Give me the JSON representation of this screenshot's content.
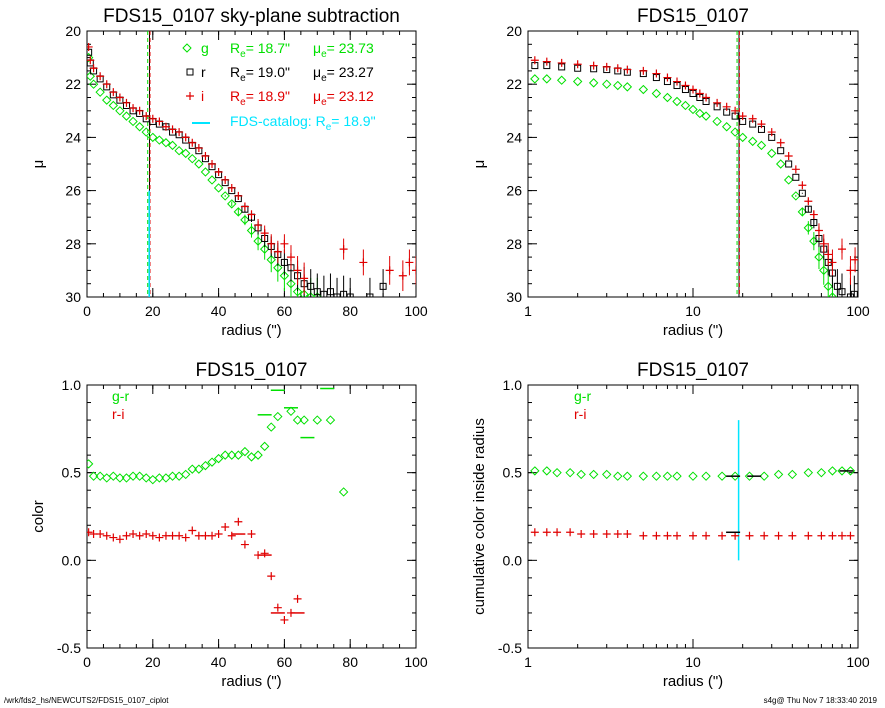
{
  "footer": {
    "path": "/wrk/fds2_hs/NEWCUTS2/FDS15_0107_ciplot",
    "stamp": "s4g@  Thu Nov  7 18:33:40 2019"
  },
  "colors": {
    "g": "#00e000",
    "r": "#000000",
    "i": "#e00000",
    "catalog": "#00e5ff"
  },
  "chart_data": [
    {
      "type": "scatter",
      "title": "FDS15_0107 sky-plane subtraction",
      "xlabel": "radius (\")",
      "ylabel": "μ",
      "xscale": "linear",
      "xlim": [
        0,
        100
      ],
      "ylim": [
        30,
        20
      ],
      "x_ticks": [
        "0",
        "20",
        "40",
        "60",
        "80",
        "100"
      ],
      "y_ticks": [
        "20",
        "22",
        "24",
        "26",
        "28",
        "30"
      ],
      "legend": [
        {
          "marker": "◇",
          "band": "g",
          "re_label": "R",
          "re_sub": "e",
          "re_value": "= 18.7\"",
          "mu_label": "μ",
          "mu_sub": "e",
          "mu_value": "= 23.73",
          "color": "#00e000"
        },
        {
          "marker": "□",
          "band": "r",
          "re_label": "R",
          "re_sub": "e",
          "re_value": "= 19.0\"",
          "mu_label": "μ",
          "mu_sub": "e",
          "mu_value": "= 23.27",
          "color": "#000000"
        },
        {
          "marker": "+",
          "band": "i",
          "re_label": "R",
          "re_sub": "e",
          "re_value": "= 18.9\"",
          "mu_label": "μ",
          "mu_sub": "e",
          "mu_value": "= 23.12",
          "color": "#e00000"
        }
      ],
      "catalog_label": "FDS-catalog: R",
      "catalog_sub": "e",
      "catalog_value": "=  18.9\"",
      "vlines": [
        18.7,
        19.0,
        18.9
      ],
      "catalog_line": {
        "x": 18.9,
        "y_from": 26,
        "y_to": 30
      },
      "series": [
        {
          "name": "g",
          "marker": "diamond",
          "x": [
            0.5,
            1,
            2,
            4,
            6,
            8,
            10,
            12,
            14,
            16,
            18,
            20,
            22,
            24,
            26,
            28,
            30,
            32,
            34,
            36,
            38,
            40,
            42,
            44,
            46,
            48,
            50,
            52,
            54,
            56,
            58,
            60,
            62,
            64,
            66,
            68,
            70
          ],
          "y": [
            21.0,
            21.7,
            22.0,
            22.3,
            22.6,
            22.8,
            23.0,
            23.2,
            23.4,
            23.6,
            23.8,
            24.0,
            24.1,
            24.2,
            24.3,
            24.5,
            24.6,
            24.8,
            25.0,
            25.3,
            25.6,
            25.9,
            26.2,
            26.5,
            26.8,
            27.1,
            27.5,
            27.9,
            28.2,
            28.6,
            28.9,
            29.2,
            29.5,
            29.8,
            29.9,
            30.0,
            30.0
          ]
        },
        {
          "name": "r",
          "marker": "square",
          "x": [
            0.5,
            1,
            2,
            4,
            6,
            8,
            10,
            12,
            14,
            16,
            18,
            20,
            22,
            24,
            26,
            28,
            30,
            32,
            34,
            36,
            38,
            40,
            42,
            44,
            46,
            48,
            50,
            52,
            54,
            56,
            58,
            60,
            62,
            64,
            66,
            68,
            70,
            72,
            74,
            76,
            78,
            80,
            86,
            90
          ],
          "y": [
            20.8,
            21.2,
            21.5,
            21.8,
            22.1,
            22.4,
            22.6,
            22.8,
            23.0,
            23.1,
            23.3,
            23.4,
            23.5,
            23.6,
            23.8,
            23.9,
            24.1,
            24.3,
            24.5,
            24.8,
            25.1,
            25.4,
            25.7,
            26.0,
            26.3,
            26.7,
            27.0,
            27.4,
            27.8,
            28.1,
            28.4,
            28.7,
            28.9,
            29.2,
            29.5,
            29.6,
            29.8,
            29.9,
            29.8,
            30.0,
            29.9,
            30.0,
            30.0,
            29.6
          ]
        },
        {
          "name": "i",
          "marker": "plus",
          "x": [
            0.5,
            1,
            2,
            4,
            6,
            8,
            10,
            12,
            14,
            16,
            18,
            20,
            22,
            24,
            26,
            28,
            30,
            32,
            34,
            36,
            38,
            40,
            42,
            44,
            46,
            48,
            50,
            52,
            54,
            56,
            58,
            60,
            62,
            64,
            66,
            78,
            84,
            92,
            96,
            98,
            100
          ],
          "y": [
            20.6,
            21.1,
            21.4,
            21.7,
            22.0,
            22.3,
            22.5,
            22.7,
            22.9,
            23.0,
            23.2,
            23.3,
            23.4,
            23.6,
            23.7,
            23.8,
            24.0,
            24.2,
            24.4,
            24.7,
            25.0,
            25.3,
            25.6,
            25.9,
            26.2,
            26.6,
            26.9,
            27.3,
            27.6,
            28.0,
            28.3,
            28.0,
            28.5,
            29.0,
            29.3,
            28.2,
            28.7,
            29.0,
            29.2,
            28.7,
            29.0
          ]
        }
      ]
    },
    {
      "type": "scatter",
      "title": "FDS15_0107",
      "xlabel": "radius (\")",
      "ylabel": "μ",
      "xscale": "log",
      "xlim": [
        1,
        100
      ],
      "ylim": [
        30,
        20
      ],
      "x_ticks": [
        "1",
        "10",
        "100"
      ],
      "y_ticks": [
        "20",
        "22",
        "24",
        "26",
        "28",
        "30"
      ],
      "vlines": [
        18.7,
        19.0,
        18.9
      ],
      "series": [
        {
          "name": "g",
          "marker": "diamond",
          "x": [
            1.1,
            1.3,
            1.6,
            2.0,
            2.5,
            3.0,
            3.5,
            4,
            5,
            6,
            7,
            8,
            9,
            10,
            11,
            12,
            14,
            16,
            18,
            20,
            23,
            26,
            30,
            34,
            38,
            42,
            46,
            50,
            54,
            58,
            62,
            66,
            70
          ],
          "y": [
            21.8,
            21.8,
            21.85,
            21.9,
            21.95,
            22.0,
            22.05,
            22.1,
            22.2,
            22.35,
            22.5,
            22.65,
            22.8,
            22.95,
            23.1,
            23.2,
            23.4,
            23.6,
            23.8,
            24.0,
            24.15,
            24.3,
            24.6,
            25.0,
            25.6,
            26.2,
            26.8,
            27.4,
            27.9,
            28.5,
            29.0,
            29.6,
            30.0
          ]
        },
        {
          "name": "r",
          "marker": "square",
          "x": [
            1.1,
            1.3,
            1.6,
            2.0,
            2.5,
            3.0,
            3.5,
            4,
            5,
            6,
            7,
            8,
            9,
            10,
            11,
            12,
            14,
            16,
            18,
            20,
            23,
            26,
            30,
            34,
            38,
            42,
            46,
            50,
            54,
            58,
            62,
            66,
            70,
            75,
            80,
            90,
            95
          ],
          "y": [
            21.3,
            21.3,
            21.35,
            21.4,
            21.42,
            21.45,
            21.5,
            21.55,
            21.6,
            21.75,
            21.9,
            22.05,
            22.2,
            22.35,
            22.5,
            22.65,
            22.85,
            23.05,
            23.2,
            23.4,
            23.5,
            23.7,
            24.0,
            24.5,
            25.0,
            25.5,
            26.1,
            26.7,
            27.2,
            27.8,
            28.2,
            28.7,
            29.1,
            29.6,
            29.8,
            30.0,
            29.9
          ]
        },
        {
          "name": "i",
          "marker": "plus",
          "x": [
            1.1,
            1.3,
            1.6,
            2.0,
            2.5,
            3.0,
            3.5,
            4,
            5,
            6,
            7,
            8,
            9,
            10,
            11,
            12,
            14,
            16,
            18,
            20,
            23,
            26,
            30,
            34,
            38,
            42,
            46,
            50,
            54,
            58,
            62,
            66,
            70,
            80,
            90,
            96
          ],
          "y": [
            21.1,
            21.15,
            21.2,
            21.25,
            21.3,
            21.35,
            21.4,
            21.45,
            21.5,
            21.6,
            21.75,
            21.9,
            22.05,
            22.2,
            22.35,
            22.5,
            22.7,
            22.85,
            23.0,
            23.2,
            23.3,
            23.5,
            23.8,
            24.2,
            24.7,
            25.2,
            25.8,
            26.4,
            26.9,
            27.5,
            28.0,
            28.4,
            28.7,
            28.2,
            29.0,
            28.6
          ]
        }
      ]
    },
    {
      "type": "scatter",
      "title": "FDS15_0107",
      "xlabel": "radius (\")",
      "ylabel": "color",
      "xscale": "linear",
      "xlim": [
        0,
        100
      ],
      "ylim": [
        -0.5,
        1.0
      ],
      "x_ticks": [
        "0",
        "20",
        "40",
        "60",
        "80",
        "100"
      ],
      "y_ticks": [
        "-0.5",
        "0.0",
        "0.5",
        "1.0"
      ],
      "legend": [
        {
          "label": "g-r",
          "color": "#00e000"
        },
        {
          "label": "r-i",
          "color": "#e00000"
        }
      ],
      "series": [
        {
          "name": "g-r",
          "marker": "diamond",
          "x": [
            0.5,
            2,
            4,
            6,
            8,
            10,
            12,
            14,
            16,
            18,
            20,
            22,
            24,
            26,
            28,
            30,
            32,
            34,
            36,
            38,
            40,
            42,
            44,
            46,
            48,
            50,
            52,
            54,
            56,
            58,
            62,
            64,
            66,
            70,
            74,
            78
          ],
          "y": [
            0.55,
            0.48,
            0.48,
            0.47,
            0.48,
            0.47,
            0.47,
            0.48,
            0.48,
            0.47,
            0.46,
            0.47,
            0.47,
            0.48,
            0.48,
            0.49,
            0.52,
            0.52,
            0.54,
            0.56,
            0.58,
            0.6,
            0.6,
            0.6,
            0.62,
            0.59,
            0.6,
            0.65,
            0.76,
            0.82,
            0.85,
            0.8,
            0.8,
            0.8,
            0.8,
            0.39
          ]
        },
        {
          "name": "g-r bins",
          "marker": "dash",
          "x": [
            54,
            58,
            62,
            67,
            73
          ],
          "y": [
            0.83,
            0.97,
            0.87,
            0.7,
            0.98
          ]
        },
        {
          "name": "r-i",
          "marker": "plus",
          "x": [
            0.5,
            2,
            4,
            6,
            8,
            10,
            12,
            14,
            16,
            18,
            20,
            22,
            24,
            26,
            28,
            30,
            32,
            34,
            36,
            38,
            40,
            42,
            44,
            46,
            48,
            50,
            52,
            54,
            56,
            58,
            60,
            62,
            64
          ],
          "y": [
            0.16,
            0.15,
            0.15,
            0.14,
            0.13,
            0.12,
            0.14,
            0.15,
            0.14,
            0.15,
            0.14,
            0.13,
            0.14,
            0.14,
            0.14,
            0.13,
            0.17,
            0.14,
            0.14,
            0.14,
            0.15,
            0.19,
            0.14,
            0.22,
            0.09,
            0.15,
            0.03,
            0.04,
            -0.09,
            -0.27,
            -0.34,
            -0.3,
            -0.22
          ]
        },
        {
          "name": "r-i bins",
          "marker": "dash",
          "x": [
            46,
            54,
            58,
            64
          ],
          "y": [
            0.15,
            0.03,
            -0.3,
            -0.3
          ]
        }
      ]
    },
    {
      "type": "line",
      "title": "FDS15_0107",
      "xlabel": "radius (\")",
      "ylabel": "cumulative color inside radius",
      "xscale": "log",
      "xlim": [
        1,
        100
      ],
      "ylim": [
        -0.5,
        1.0
      ],
      "x_ticks": [
        "1",
        "10",
        "100"
      ],
      "y_ticks": [
        "-0.5",
        "0.0",
        "0.5",
        "1.0"
      ],
      "legend": [
        {
          "label": "g-r",
          "color": "#00e000"
        },
        {
          "label": "r-i",
          "color": "#e00000"
        }
      ],
      "catalog_line": {
        "x": 18.9,
        "y_from": 0.0,
        "y_to": 0.8
      },
      "series": [
        {
          "name": "g-r",
          "marker": "diamond",
          "x": [
            1.1,
            1.3,
            1.5,
            1.8,
            2.1,
            2.5,
            3.0,
            3.5,
            4,
            5,
            6,
            7,
            8,
            10,
            12,
            15,
            18,
            22,
            27,
            33,
            40,
            50,
            60,
            70,
            80,
            90
          ],
          "y": [
            0.51,
            0.51,
            0.5,
            0.5,
            0.49,
            0.49,
            0.49,
            0.48,
            0.48,
            0.48,
            0.48,
            0.48,
            0.48,
            0.48,
            0.48,
            0.48,
            0.48,
            0.48,
            0.48,
            0.49,
            0.49,
            0.5,
            0.5,
            0.51,
            0.51,
            0.51
          ]
        },
        {
          "name": "r-i",
          "marker": "plus",
          "x": [
            1.1,
            1.3,
            1.5,
            1.8,
            2.1,
            2.5,
            3.0,
            3.5,
            4,
            5,
            6,
            7,
            8,
            10,
            12,
            15,
            18,
            22,
            27,
            33,
            40,
            50,
            60,
            70,
            80,
            90
          ],
          "y": [
            0.16,
            0.16,
            0.16,
            0.16,
            0.15,
            0.15,
            0.15,
            0.15,
            0.15,
            0.14,
            0.14,
            0.14,
            0.14,
            0.14,
            0.14,
            0.14,
            0.14,
            0.14,
            0.14,
            0.14,
            0.14,
            0.14,
            0.14,
            0.14,
            0.14,
            0.14
          ]
        },
        {
          "name": "Re markers",
          "marker": "dash",
          "x": [
            17.5,
            23.5,
            17.5,
            85
          ],
          "y": [
            0.48,
            0.48,
            0.16,
            0.51
          ]
        }
      ]
    }
  ]
}
